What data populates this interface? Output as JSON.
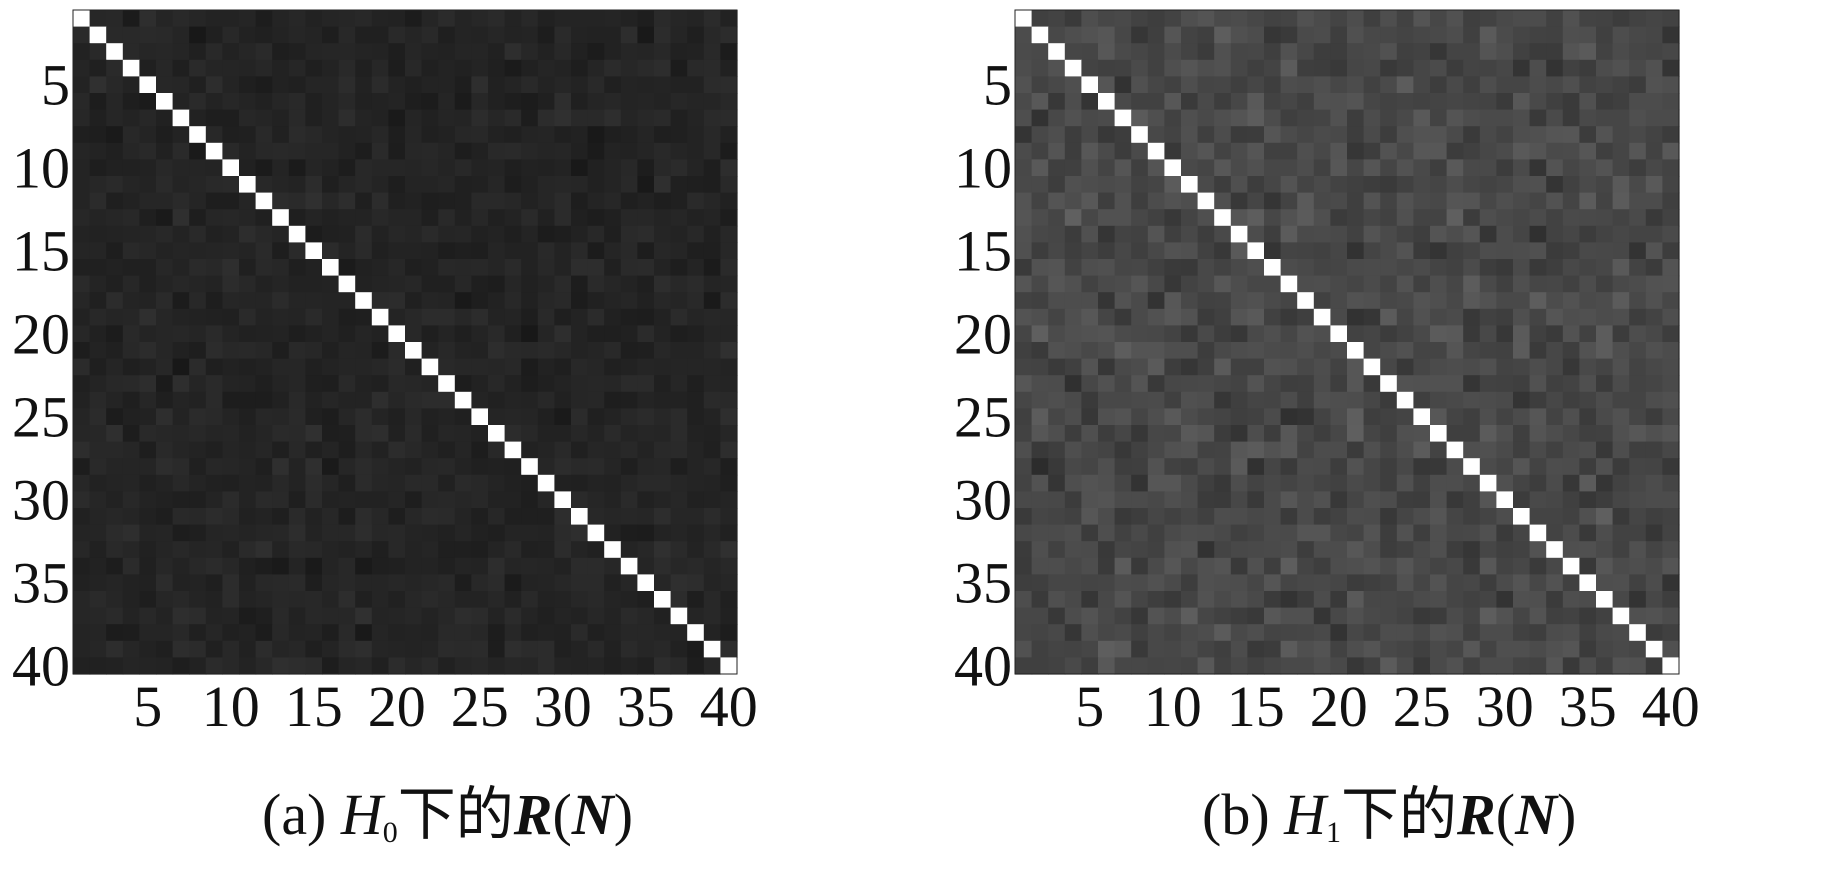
{
  "figure": {
    "panels": [
      {
        "caption_prefix": "(a) ",
        "caption_var": "H",
        "caption_sub": "0",
        "caption_mid": "下的",
        "caption_R": "R",
        "caption_paren_open": "(",
        "caption_N": "N",
        "caption_paren_close": ")"
      },
      {
        "caption_prefix": "(b)  ",
        "caption_var": "H",
        "caption_sub": "1",
        "caption_mid": "下的",
        "caption_R": "R",
        "caption_paren_open": "(",
        "caption_N": "N",
        "caption_paren_close": ")"
      }
    ]
  },
  "chart_data": [
    {
      "type": "heatmap",
      "size": 40,
      "x_ticks": [
        5,
        10,
        15,
        20,
        25,
        30,
        35,
        40
      ],
      "y_ticks": [
        5,
        10,
        15,
        20,
        25,
        30,
        35,
        40
      ],
      "xlim": [
        1,
        40
      ],
      "ylim": [
        1,
        40
      ],
      "diagonal_value": 1.0,
      "offdiagonal_mean": 0.07,
      "offdiagonal_spread": 0.06,
      "seed": 7,
      "colormap": "gray",
      "xlabel": "",
      "ylabel": ""
    },
    {
      "type": "heatmap",
      "size": 40,
      "x_ticks": [
        5,
        10,
        15,
        20,
        25,
        30,
        35,
        40
      ],
      "y_ticks": [
        5,
        10,
        15,
        20,
        25,
        30,
        35,
        40
      ],
      "xlim": [
        1,
        40
      ],
      "ylim": [
        1,
        40
      ],
      "diagonal_value": 1.0,
      "offdiagonal_mean": 0.22,
      "offdiagonal_spread": 0.12,
      "seed": 19,
      "colormap": "gray",
      "xlabel": "",
      "ylabel": ""
    }
  ]
}
